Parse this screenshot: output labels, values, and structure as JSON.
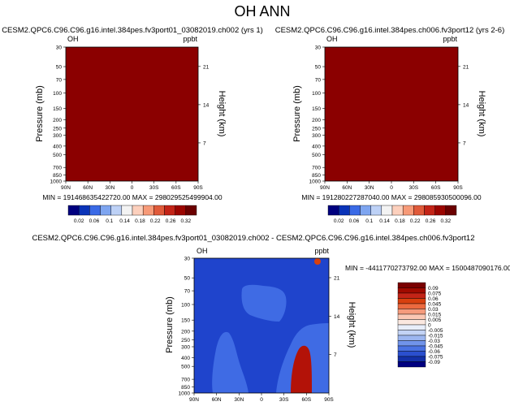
{
  "figure": {
    "title": "OH ANN"
  },
  "chart_data": [
    {
      "type": "heatmap",
      "panel": "top-left",
      "title": "CESM2.QPC6.C96.C96.g16.intel.384pes.fv3port01_03082019.ch002 (yrs 1)",
      "field_label": "OH",
      "units": "ppbt",
      "ylabel": "Pressure (mb)",
      "y2label": "Height (km)",
      "x_ticks": [
        "90N",
        "60N",
        "30N",
        "0",
        "30S",
        "60S",
        "90S"
      ],
      "y_ticks": [
        "30",
        "50",
        "70",
        "100",
        "150",
        "200",
        "250",
        "300",
        "400",
        "500",
        "700",
        "850",
        "1000"
      ],
      "y2_ticks": [
        "21",
        "14",
        "7"
      ],
      "y_log_scale": true,
      "ylim": [
        30,
        1000
      ],
      "fill_color": "#8b0000",
      "stats_text": "MIN = 191468635422720.00   MAX = 298029525499904.00",
      "colorbar": {
        "labels": [
          "0.02",
          "0.06",
          "0.1",
          "0.14",
          "0.18",
          "0.22",
          "0.26",
          "0.32"
        ],
        "colors": [
          "#00007f",
          "#0a33b8",
          "#3a6ae6",
          "#7ea5f0",
          "#bdd1f6",
          "#f3f3f3",
          "#fcd0bd",
          "#f79a78",
          "#e05a3a",
          "#c32417",
          "#9b0500",
          "#6b0000"
        ]
      }
    },
    {
      "type": "heatmap",
      "panel": "top-right",
      "title": "CESM2.QPC6.C96.C96.g16.intel.384pes.ch006.fv3port12 (yrs 2-6)",
      "field_label": "OH",
      "units": "ppbt",
      "ylabel": "Pressure (mb)",
      "y2label": "Height (km)",
      "x_ticks": [
        "90N",
        "60N",
        "30N",
        "0",
        "30S",
        "60S",
        "90S"
      ],
      "y_ticks": [
        "30",
        "50",
        "70",
        "100",
        "150",
        "200",
        "250",
        "300",
        "400",
        "500",
        "700",
        "850",
        "1000"
      ],
      "y2_ticks": [
        "21",
        "14",
        "7"
      ],
      "y_log_scale": true,
      "ylim": [
        30,
        1000
      ],
      "fill_color": "#8b0000",
      "stats_text": "MIN = 191280227287040.00   MAX = 298085930500096.00",
      "colorbar": {
        "labels": [
          "0.02",
          "0.06",
          "0.1",
          "0.14",
          "0.18",
          "0.22",
          "0.26",
          "0.32"
        ],
        "colors": [
          "#00007f",
          "#0a33b8",
          "#3a6ae6",
          "#7ea5f0",
          "#bdd1f6",
          "#f3f3f3",
          "#fcd0bd",
          "#f79a78",
          "#e05a3a",
          "#c32417",
          "#9b0500",
          "#6b0000"
        ]
      }
    },
    {
      "type": "heatmap",
      "panel": "bottom-difference",
      "title": "CESM2.QPC6.C96.C96.g16.intel.384pes.fv3port01_03082019.ch002 - CESM2.QPC6.C96.C96.g16.intel.384pes.ch006.fv3port12",
      "field_label": "OH",
      "units": "ppbt",
      "ylabel": "Pressure (mb)",
      "y2label": "Height (km)",
      "x_ticks": [
        "90N",
        "60N",
        "30N",
        "0",
        "30S",
        "60S",
        "90S"
      ],
      "y_ticks": [
        "30",
        "50",
        "70",
        "100",
        "150",
        "200",
        "250",
        "300",
        "400",
        "500",
        "700",
        "850",
        "1000"
      ],
      "y2_ticks": [
        "21",
        "14",
        "7"
      ],
      "y_log_scale": true,
      "ylim": [
        30,
        1000
      ],
      "background_color": "#1f44cc",
      "contour_colors": {
        "light_blue": "#3f6be4",
        "orange": "#d8400f",
        "red": "#b31208"
      },
      "stats_text": "MIN = -4411770273792.00   MAX = 1500487090176.00",
      "colorbar": {
        "labels": [
          "0.09",
          "0.075",
          "0.06",
          "0.045",
          "0.03",
          "0.015",
          "0.005",
          "0",
          "-0.005",
          "-0.015",
          "-0.03",
          "-0.045",
          "-0.06",
          "-0.075",
          "-0.09"
        ],
        "colors": [
          "#7a0000",
          "#a00a00",
          "#c32417",
          "#d8400f",
          "#ec6a3f",
          "#f59b7c",
          "#fbc8b4",
          "#fbe8e0",
          "#e8eefa",
          "#c3d3f5",
          "#9cb6f0",
          "#7194ea",
          "#4a72e2",
          "#2a4fcf",
          "#1330a8",
          "#000080"
        ]
      }
    }
  ]
}
